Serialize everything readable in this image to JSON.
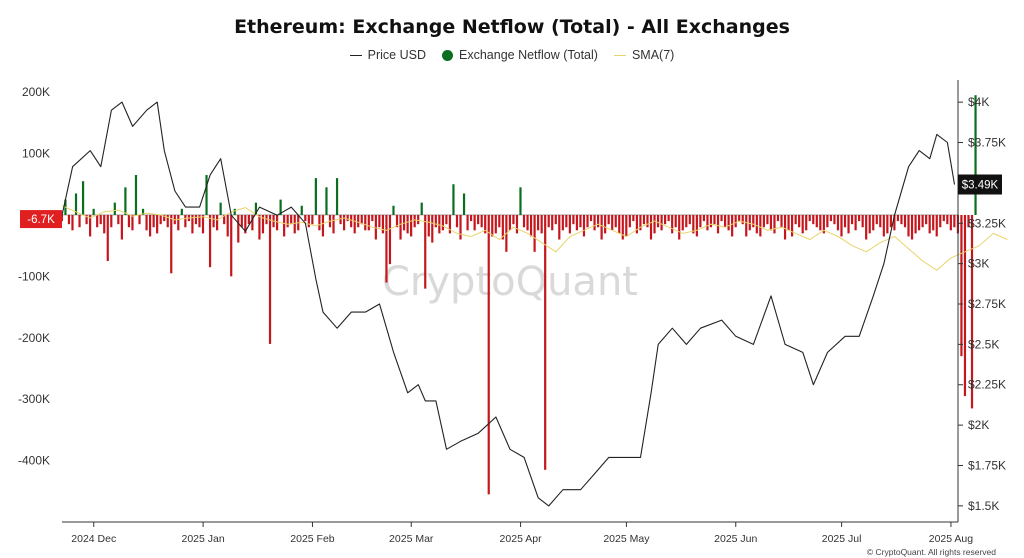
{
  "chart_data": {
    "type": "bar",
    "title": "Ethereum: Exchange Netflow (Total) - All Exchanges",
    "legend": [
      {
        "key": "price",
        "label": "Price USD"
      },
      {
        "key": "netflow",
        "label": "Exchange Netflow (Total)"
      },
      {
        "key": "sma",
        "label": "SMA(7)"
      }
    ],
    "legend_placement": "top-center",
    "watermark": "CryptoQuant",
    "footer": "© CryptoQuant. All rights reserved",
    "x_axis": {
      "start": "2024-11-22",
      "end": "2025-08-03",
      "ticks": [
        {
          "date": "2024-12-01",
          "label": "2024 Dec"
        },
        {
          "date": "2025-01-01",
          "label": "2025 Jan"
        },
        {
          "date": "2025-02-01",
          "label": "2025 Feb"
        },
        {
          "date": "2025-03-01",
          "label": "2025 Mar"
        },
        {
          "date": "2025-04-01",
          "label": "2025 Apr"
        },
        {
          "date": "2025-05-01",
          "label": "2025 May"
        },
        {
          "date": "2025-06-01",
          "label": "2025 Jun"
        },
        {
          "date": "2025-07-01",
          "label": "2025 Jul"
        },
        {
          "date": "2025-08-01",
          "label": "2025 Aug"
        }
      ]
    },
    "y_left": {
      "ylim": [
        -500000,
        210000
      ],
      "ticks": [
        {
          "value": 200000,
          "label": "200K"
        },
        {
          "value": 100000,
          "label": "100K"
        },
        {
          "value": -100000,
          "label": "-100K"
        },
        {
          "value": -200000,
          "label": "-200K"
        },
        {
          "value": -300000,
          "label": "-300K"
        },
        {
          "value": -400000,
          "label": "-400K"
        }
      ],
      "highlight": {
        "value": -6700,
        "label": "-6.7K",
        "color": "#e02020"
      }
    },
    "y_right": {
      "ylim": [
        1400,
        4100
      ],
      "ticks": [
        {
          "value": 4000,
          "label": "$4K"
        },
        {
          "value": 3750,
          "label": "$3.75K"
        },
        {
          "value": 3500,
          "label": "$3.5K"
        },
        {
          "value": 3250,
          "label": "$3.25K"
        },
        {
          "value": 3000,
          "label": "$3K"
        },
        {
          "value": 2750,
          "label": "$2.75K"
        },
        {
          "value": 2500,
          "label": "$2.5K"
        },
        {
          "value": 2250,
          "label": "$2.25K"
        },
        {
          "value": 2000,
          "label": "$2K"
        },
        {
          "value": 1750,
          "label": "$1.75K"
        },
        {
          "value": 1500,
          "label": "$1.5K"
        }
      ],
      "highlight": {
        "value": 3490,
        "label": "$3.49K",
        "color": "#111111"
      }
    },
    "colors": {
      "inflow": "#0a6e1f",
      "outflow": "#c4161c",
      "price": "#222222",
      "sma": "#e8d46a"
    },
    "series": [
      {
        "name": "Exchange Netflow (Total)",
        "start": "2024-11-22",
        "values": [
          -10000,
          25000,
          -15000,
          -25000,
          35000,
          -20000,
          55000,
          -15000,
          -35000,
          10000,
          -20000,
          -15000,
          -30000,
          -75000,
          -20000,
          20000,
          -15000,
          -40000,
          45000,
          -20000,
          -25000,
          65000,
          -15000,
          10000,
          -25000,
          -35000,
          -20000,
          -30000,
          -15000,
          -10000,
          -20000,
          -95000,
          -15000,
          -25000,
          10000,
          -20000,
          -10000,
          -30000,
          -15000,
          -20000,
          -30000,
          65000,
          -85000,
          -20000,
          -25000,
          20000,
          -15000,
          -35000,
          -100000,
          10000,
          -45000,
          -20000,
          -30000,
          -15000,
          -25000,
          20000,
          -40000,
          -30000,
          -15000,
          -210000,
          -20000,
          -25000,
          25000,
          -35000,
          -20000,
          -15000,
          -30000,
          -25000,
          15000,
          -10000,
          -20000,
          -15000,
          60000,
          -25000,
          -35000,
          45000,
          -20000,
          -30000,
          60000,
          -15000,
          -25000,
          -10000,
          -20000,
          -30000,
          -20000,
          -15000,
          -25000,
          -25000,
          -10000,
          -40000,
          -20000,
          -30000,
          -110000,
          -80000,
          15000,
          -20000,
          -40000,
          -25000,
          -30000,
          -35000,
          -20000,
          -15000,
          20000,
          -120000,
          -35000,
          -45000,
          -20000,
          -30000,
          -25000,
          -15000,
          -30000,
          50000,
          -20000,
          -40000,
          35000,
          -25000,
          -10000,
          -25000,
          -15000,
          -20000,
          -30000,
          -455000,
          -35000,
          -30000,
          -20000,
          -40000,
          -60000,
          -25000,
          -15000,
          -30000,
          45000,
          -20000,
          -25000,
          -35000,
          -60000,
          -25000,
          -30000,
          -415000,
          -20000,
          -25000,
          -15000,
          -40000,
          -25000,
          -20000,
          -30000,
          -15000,
          -25000,
          -20000,
          -35000,
          -20000,
          -10000,
          -25000,
          -20000,
          -40000,
          -30000,
          -15000,
          -25000,
          -20000,
          -30000,
          -40000,
          -35000,
          -20000,
          -10000,
          -30000,
          -25000,
          -15000,
          -20000,
          -40000,
          -30000,
          -20000,
          -25000,
          -15000,
          -10000,
          -30000,
          -20000,
          -40000,
          -25000,
          -20000,
          -15000,
          -30000,
          -35000,
          -20000,
          -10000,
          -25000,
          -20000,
          -15000,
          -30000,
          -10000,
          -20000,
          -25000,
          -35000,
          -20000,
          -10000,
          -15000,
          -35000,
          -25000,
          -20000,
          -30000,
          -35000,
          -20000,
          -15000,
          -25000,
          -30000,
          -10000,
          -20000,
          -40000,
          -25000,
          -35000,
          -15000,
          -20000,
          -30000,
          -25000,
          -10000,
          -15000,
          -20000,
          -25000,
          -30000,
          -20000,
          -10000,
          -15000,
          -25000,
          -35000,
          -20000,
          -30000,
          -15000,
          -25000,
          -10000,
          -20000,
          -40000,
          -30000,
          -25000,
          -15000,
          -20000,
          -35000,
          -30000,
          -20000,
          -25000,
          -10000,
          -15000,
          -20000,
          -35000,
          -40000,
          -30000,
          -25000,
          -20000,
          -15000,
          -30000,
          -25000,
          -35000,
          -20000,
          -10000,
          -15000,
          -25000,
          -20000,
          -30000,
          -230000,
          -295000,
          -20000,
          -315000,
          195000
        ]
      },
      {
        "name": "Price USD",
        "points": [
          {
            "date": "2024-11-22",
            "value": 3300
          },
          {
            "date": "2024-11-25",
            "value": 3600
          },
          {
            "date": "2024-11-30",
            "value": 3700
          },
          {
            "date": "2024-12-03",
            "value": 3600
          },
          {
            "date": "2024-12-06",
            "value": 3950
          },
          {
            "date": "2024-12-09",
            "value": 4000
          },
          {
            "date": "2024-12-12",
            "value": 3850
          },
          {
            "date": "2024-12-16",
            "value": 3950
          },
          {
            "date": "2024-12-19",
            "value": 4000
          },
          {
            "date": "2024-12-21",
            "value": 3700
          },
          {
            "date": "2024-12-24",
            "value": 3450
          },
          {
            "date": "2024-12-27",
            "value": 3350
          },
          {
            "date": "2024-12-31",
            "value": 3350
          },
          {
            "date": "2025-01-03",
            "value": 3550
          },
          {
            "date": "2025-01-06",
            "value": 3650
          },
          {
            "date": "2025-01-09",
            "value": 3300
          },
          {
            "date": "2025-01-13",
            "value": 3200
          },
          {
            "date": "2025-01-17",
            "value": 3350
          },
          {
            "date": "2025-01-22",
            "value": 3300
          },
          {
            "date": "2025-01-26",
            "value": 3350
          },
          {
            "date": "2025-01-30",
            "value": 3250
          },
          {
            "date": "2025-02-02",
            "value": 2900
          },
          {
            "date": "2025-02-04",
            "value": 2700
          },
          {
            "date": "2025-02-08",
            "value": 2600
          },
          {
            "date": "2025-02-12",
            "value": 2700
          },
          {
            "date": "2025-02-16",
            "value": 2700
          },
          {
            "date": "2025-02-20",
            "value": 2750
          },
          {
            "date": "2025-02-24",
            "value": 2450
          },
          {
            "date": "2025-02-28",
            "value": 2200
          },
          {
            "date": "2025-03-03",
            "value": 2250
          },
          {
            "date": "2025-03-05",
            "value": 2150
          },
          {
            "date": "2025-03-08",
            "value": 2150
          },
          {
            "date": "2025-03-11",
            "value": 1850
          },
          {
            "date": "2025-03-15",
            "value": 1900
          },
          {
            "date": "2025-03-20",
            "value": 1950
          },
          {
            "date": "2025-03-25",
            "value": 2050
          },
          {
            "date": "2025-03-29",
            "value": 1850
          },
          {
            "date": "2025-04-02",
            "value": 1800
          },
          {
            "date": "2025-04-06",
            "value": 1550
          },
          {
            "date": "2025-04-09",
            "value": 1500
          },
          {
            "date": "2025-04-13",
            "value": 1600
          },
          {
            "date": "2025-04-18",
            "value": 1600
          },
          {
            "date": "2025-04-22",
            "value": 1700
          },
          {
            "date": "2025-04-26",
            "value": 1800
          },
          {
            "date": "2025-04-30",
            "value": 1800
          },
          {
            "date": "2025-05-05",
            "value": 1800
          },
          {
            "date": "2025-05-08",
            "value": 2200
          },
          {
            "date": "2025-05-10",
            "value": 2500
          },
          {
            "date": "2025-05-14",
            "value": 2600
          },
          {
            "date": "2025-05-18",
            "value": 2500
          },
          {
            "date": "2025-05-22",
            "value": 2600
          },
          {
            "date": "2025-05-28",
            "value": 2650
          },
          {
            "date": "2025-06-01",
            "value": 2550
          },
          {
            "date": "2025-06-06",
            "value": 2500
          },
          {
            "date": "2025-06-11",
            "value": 2800
          },
          {
            "date": "2025-06-15",
            "value": 2500
          },
          {
            "date": "2025-06-20",
            "value": 2450
          },
          {
            "date": "2025-06-23",
            "value": 2250
          },
          {
            "date": "2025-06-27",
            "value": 2450
          },
          {
            "date": "2025-07-02",
            "value": 2550
          },
          {
            "date": "2025-07-06",
            "value": 2550
          },
          {
            "date": "2025-07-10",
            "value": 2800
          },
          {
            "date": "2025-07-13",
            "value": 3000
          },
          {
            "date": "2025-07-16",
            "value": 3300
          },
          {
            "date": "2025-07-20",
            "value": 3600
          },
          {
            "date": "2025-07-23",
            "value": 3700
          },
          {
            "date": "2025-07-26",
            "value": 3650
          },
          {
            "date": "2025-07-28",
            "value": 3800
          },
          {
            "date": "2025-07-31",
            "value": 3750
          },
          {
            "date": "2025-08-02",
            "value": 3490
          }
        ]
      },
      {
        "name": "SMA(7)",
        "start": "2024-11-22",
        "step_days": 4,
        "values": [
          15000,
          5000,
          -5000,
          5000,
          8000,
          -2000,
          3000,
          0,
          -8000,
          -5000,
          -3000,
          -8000,
          5000,
          12000,
          -3000,
          -10000,
          -15000,
          -12000,
          -18000,
          -10000,
          -5000,
          -12000,
          -20000,
          -25000,
          -15000,
          -8000,
          -12000,
          -18000,
          -30000,
          -35000,
          -25000,
          -40000,
          -20000,
          -30000,
          -45000,
          -60000,
          -35000,
          -25000,
          -15000,
          -25000,
          -35000,
          -20000,
          -10000,
          -20000,
          -30000,
          -25000,
          -15000,
          -20000,
          -10000,
          -15000,
          -25000,
          -20000,
          -30000,
          -40000,
          -25000,
          -35000,
          -50000,
          -60000,
          -45000,
          -35000,
          -55000,
          -75000,
          -90000,
          -70000,
          -60000,
          -50000,
          -30000,
          -40000
        ]
      }
    ]
  }
}
